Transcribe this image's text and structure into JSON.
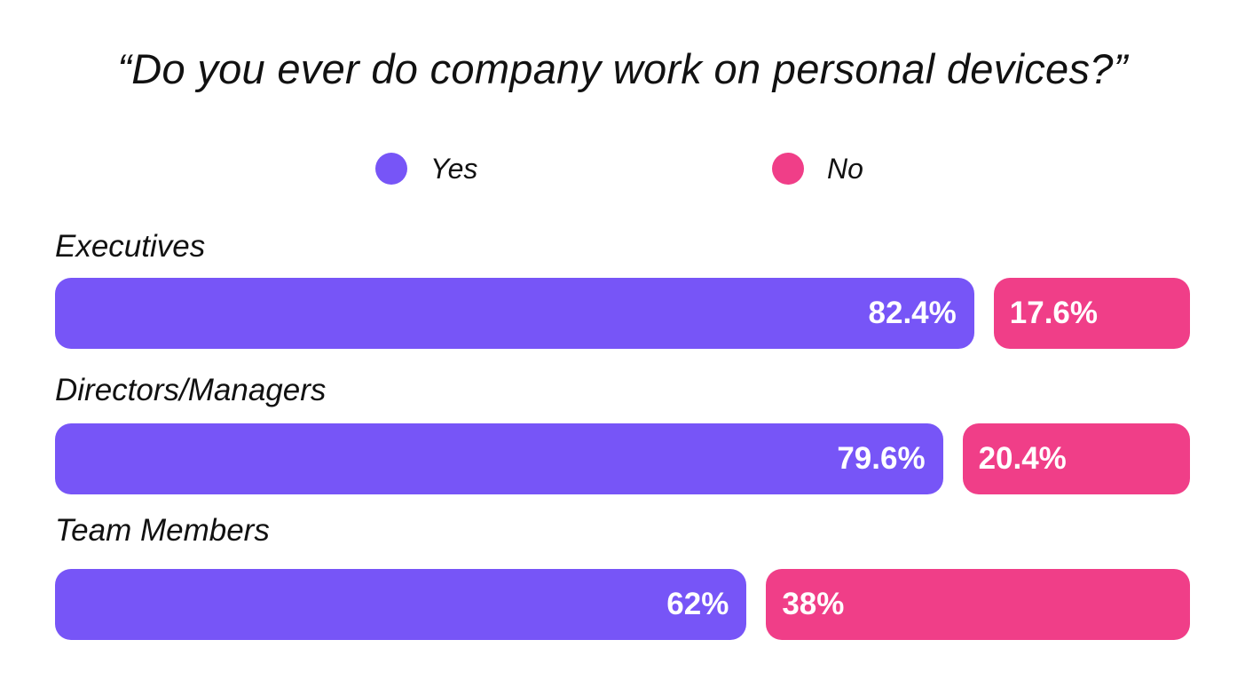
{
  "chart_data": {
    "type": "bar",
    "title": "“Do you ever do company work on personal devices?”",
    "orientation": "horizontal",
    "stacked": true,
    "categories": [
      "Executives",
      "Directors/Managers",
      "Team Members"
    ],
    "series": [
      {
        "name": "Yes",
        "color": "#7755F7",
        "values": [
          82.4,
          79.6,
          62
        ],
        "labels": [
          "82.4%",
          "79.6%",
          "62%"
        ]
      },
      {
        "name": "No",
        "color": "#F03E88",
        "values": [
          17.6,
          20.4,
          38
        ],
        "labels": [
          "17.6%",
          "20.4%",
          "38%"
        ]
      }
    ],
    "xlim": [
      0,
      100
    ],
    "grid": false,
    "legend_position": "top-center"
  }
}
